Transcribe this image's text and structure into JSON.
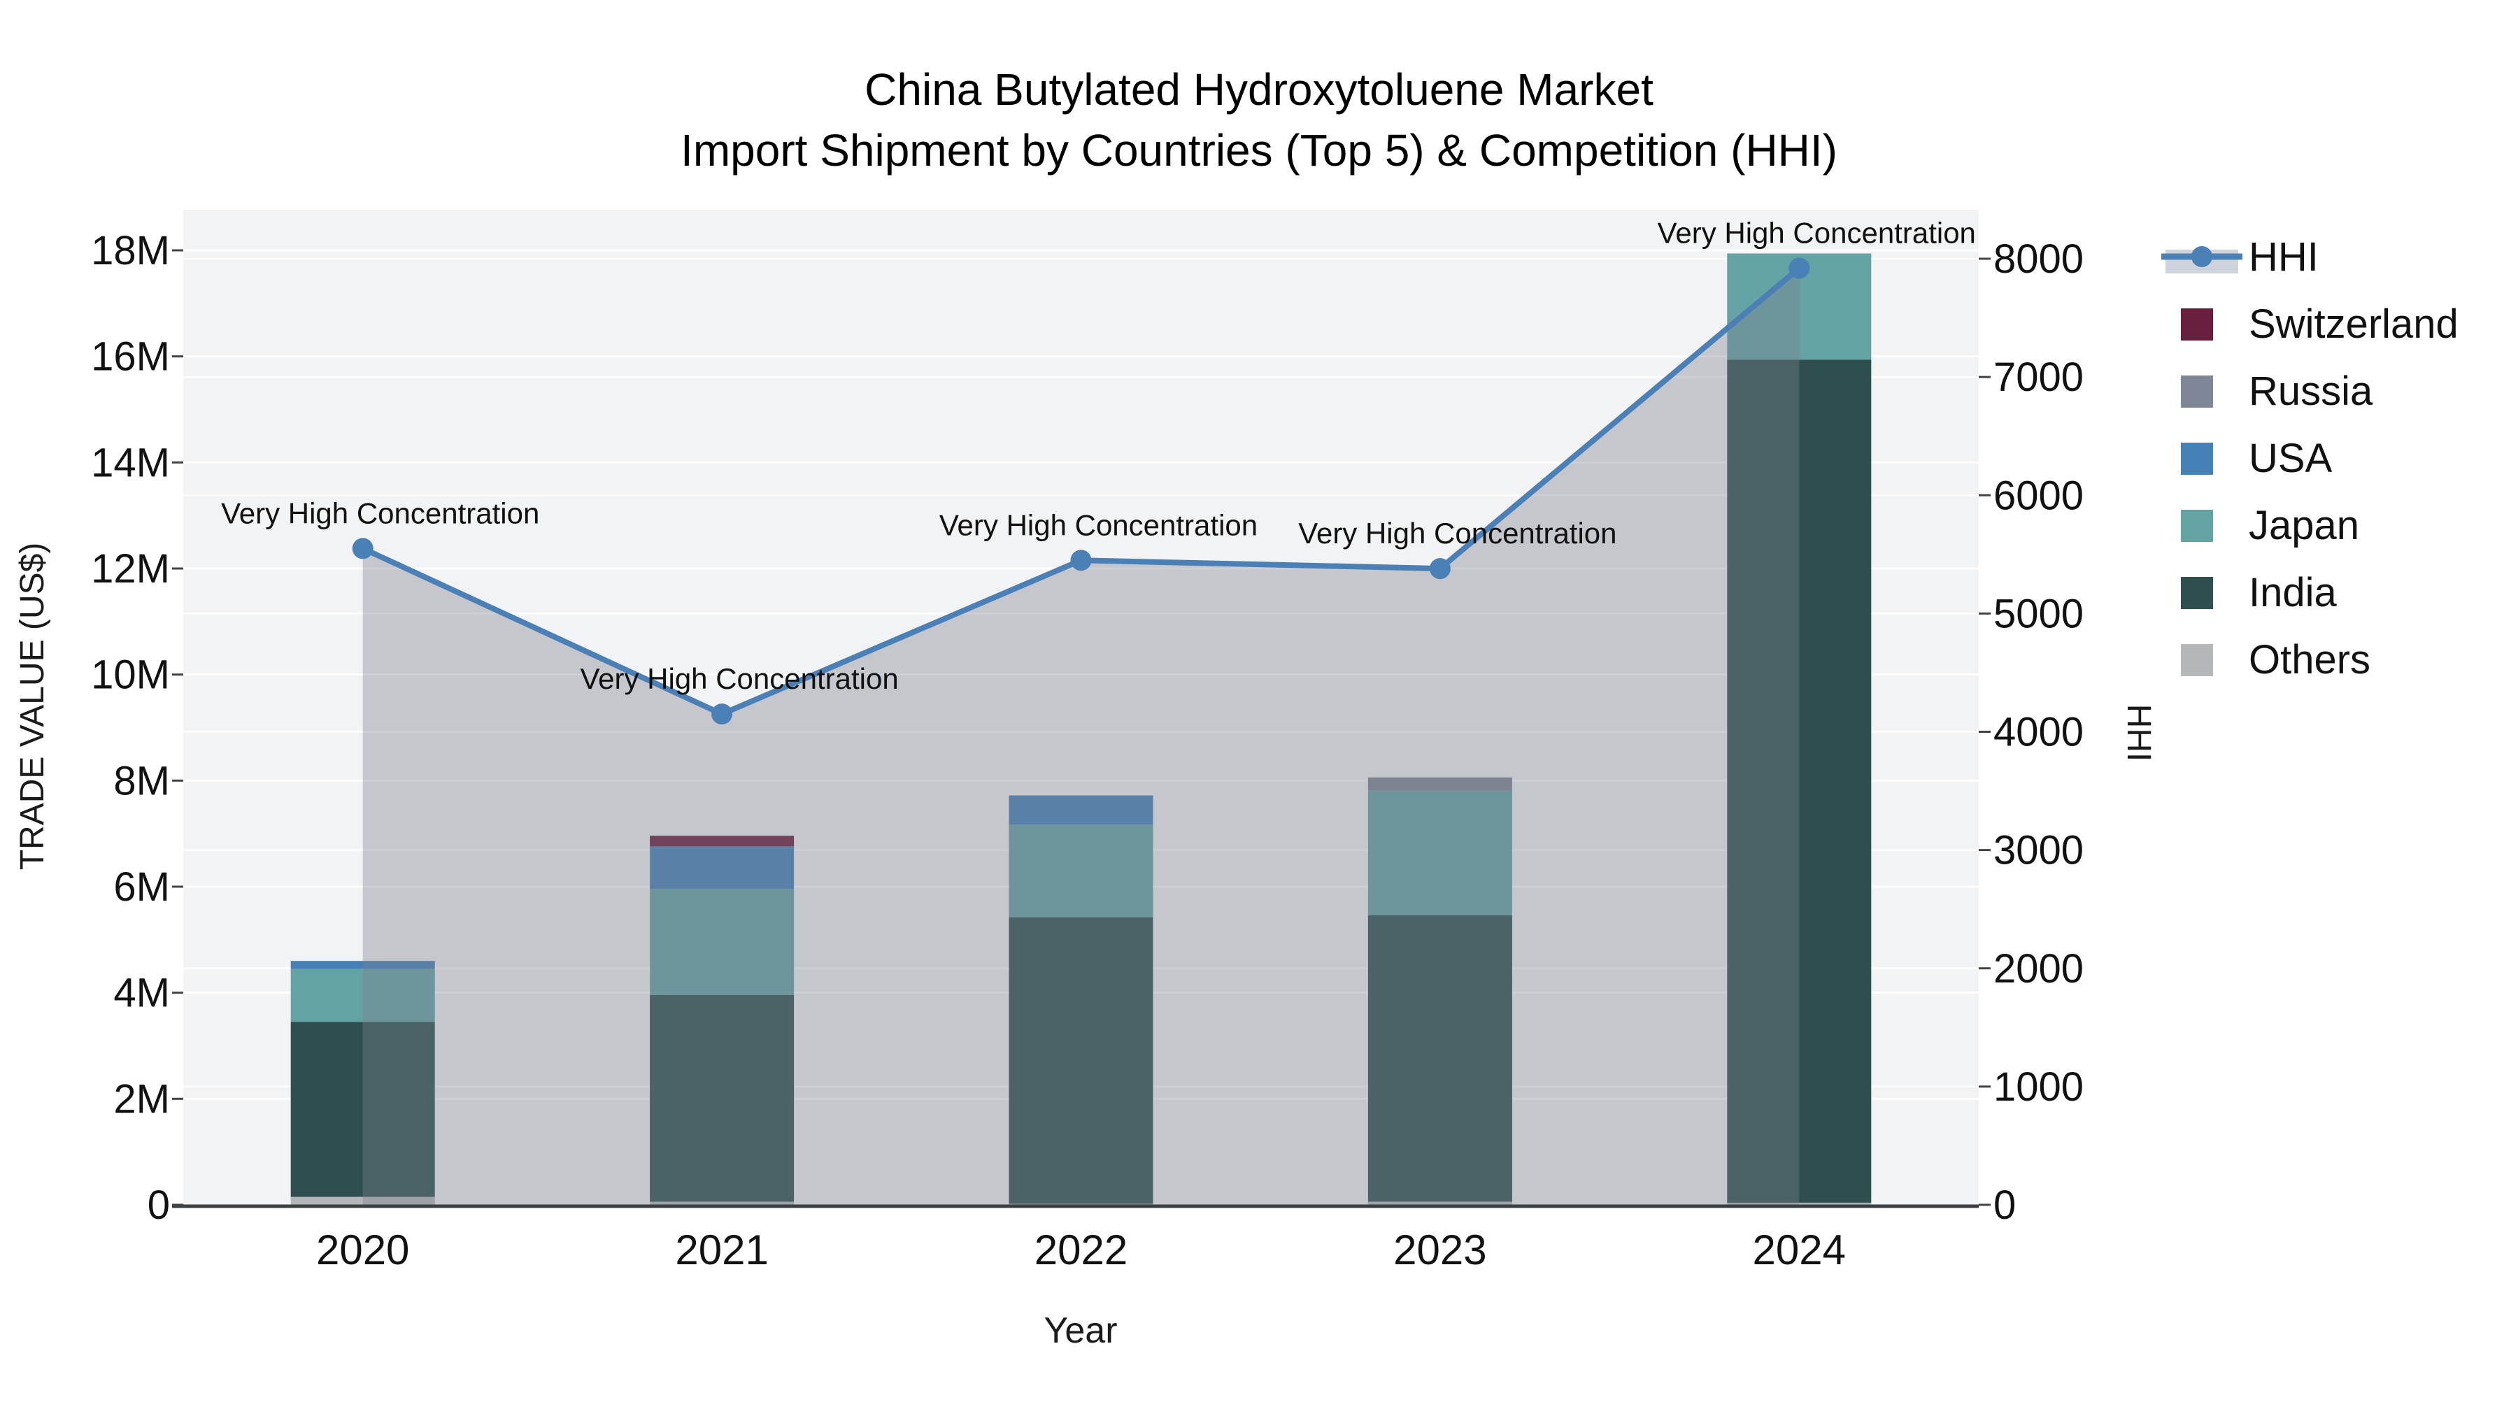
{
  "title": {
    "line1": "China Butylated Hydroxytoluene Market",
    "line2": "Import Shipment by Countries (Top 5) & Competition (HHI)"
  },
  "chart_data": {
    "type": "combo",
    "subtype": "stacked-bar + line-with-area",
    "x_axis": {
      "label": "Year",
      "categories": [
        "2020",
        "2021",
        "2022",
        "2023",
        "2024"
      ]
    },
    "left_axis": {
      "label": "TRADE VALUE (US$)",
      "unit": "USD millions",
      "tick_labels": [
        "0",
        "2M",
        "4M",
        "6M",
        "8M",
        "10M",
        "12M",
        "14M",
        "16M",
        "18M"
      ],
      "tick_values": [
        0,
        2,
        4,
        6,
        8,
        10,
        12,
        14,
        16,
        18
      ],
      "range": [
        0,
        19
      ]
    },
    "right_axis": {
      "label": "HHI",
      "tick_labels": [
        "0",
        "1000",
        "2000",
        "3000",
        "4000",
        "5000",
        "6000",
        "7000",
        "8000"
      ],
      "tick_values": [
        0,
        1000,
        2000,
        3000,
        4000,
        5000,
        6000,
        7000,
        8000
      ],
      "range": [
        0,
        8450
      ]
    },
    "grid": "on",
    "legend_position": "right",
    "bar_series": [
      {
        "name": "Others",
        "color": "#b4b6b8",
        "values_millions": [
          0.15,
          0.06,
          0.02,
          0.06,
          0.04
        ]
      },
      {
        "name": "India",
        "color": "#2e4f4e",
        "values_millions": [
          3.3,
          3.9,
          5.4,
          5.4,
          15.9
        ]
      },
      {
        "name": "Japan",
        "color": "#64a2a3",
        "values_millions": [
          1.0,
          2.0,
          1.75,
          2.35,
          2.0
        ]
      },
      {
        "name": "USA",
        "color": "#4580b6",
        "values_millions": [
          0.15,
          0.8,
          0.55,
          0,
          0
        ]
      },
      {
        "name": "Russia",
        "color": "#7d8795",
        "values_millions": [
          0,
          0,
          0,
          0.25,
          0
        ]
      },
      {
        "name": "Switzerland",
        "color": "#6b1f3e",
        "values_millions": [
          0,
          0.2,
          0,
          0,
          0
        ]
      }
    ],
    "bar_totals_millions": [
      4.6,
      6.96,
      7.72,
      8.06,
      17.94
    ],
    "line_series": {
      "name": "HHI",
      "color": "#4a80b5",
      "area_fill": "rgba(124,130,143,0.38)",
      "values": [
        5550,
        4150,
        5450,
        5380,
        7920
      ],
      "annotations": [
        "Very High Concentration",
        "Very High Concentration",
        "Very High Concentration",
        "Very High Concentration",
        "Very High Concentration"
      ]
    },
    "legend": [
      {
        "name": "HHI",
        "type": "line",
        "color": "#4a80b5",
        "band": "#cfd4dc"
      },
      {
        "name": "Switzerland",
        "type": "swatch",
        "color": "#6b1f3e"
      },
      {
        "name": "Russia",
        "type": "swatch",
        "color": "#7d8795"
      },
      {
        "name": "USA",
        "type": "swatch",
        "color": "#4580b6"
      },
      {
        "name": "Japan",
        "type": "swatch",
        "color": "#64a2a3"
      },
      {
        "name": "India",
        "type": "swatch",
        "color": "#2e4f4e"
      },
      {
        "name": "Others",
        "type": "swatch",
        "color": "#b4b6b8"
      }
    ],
    "colors": {
      "plot_bg": "#f2f3f4",
      "gridline": "#ffffff",
      "axis_line": "#3b4045",
      "tick_color": "#444444"
    }
  }
}
